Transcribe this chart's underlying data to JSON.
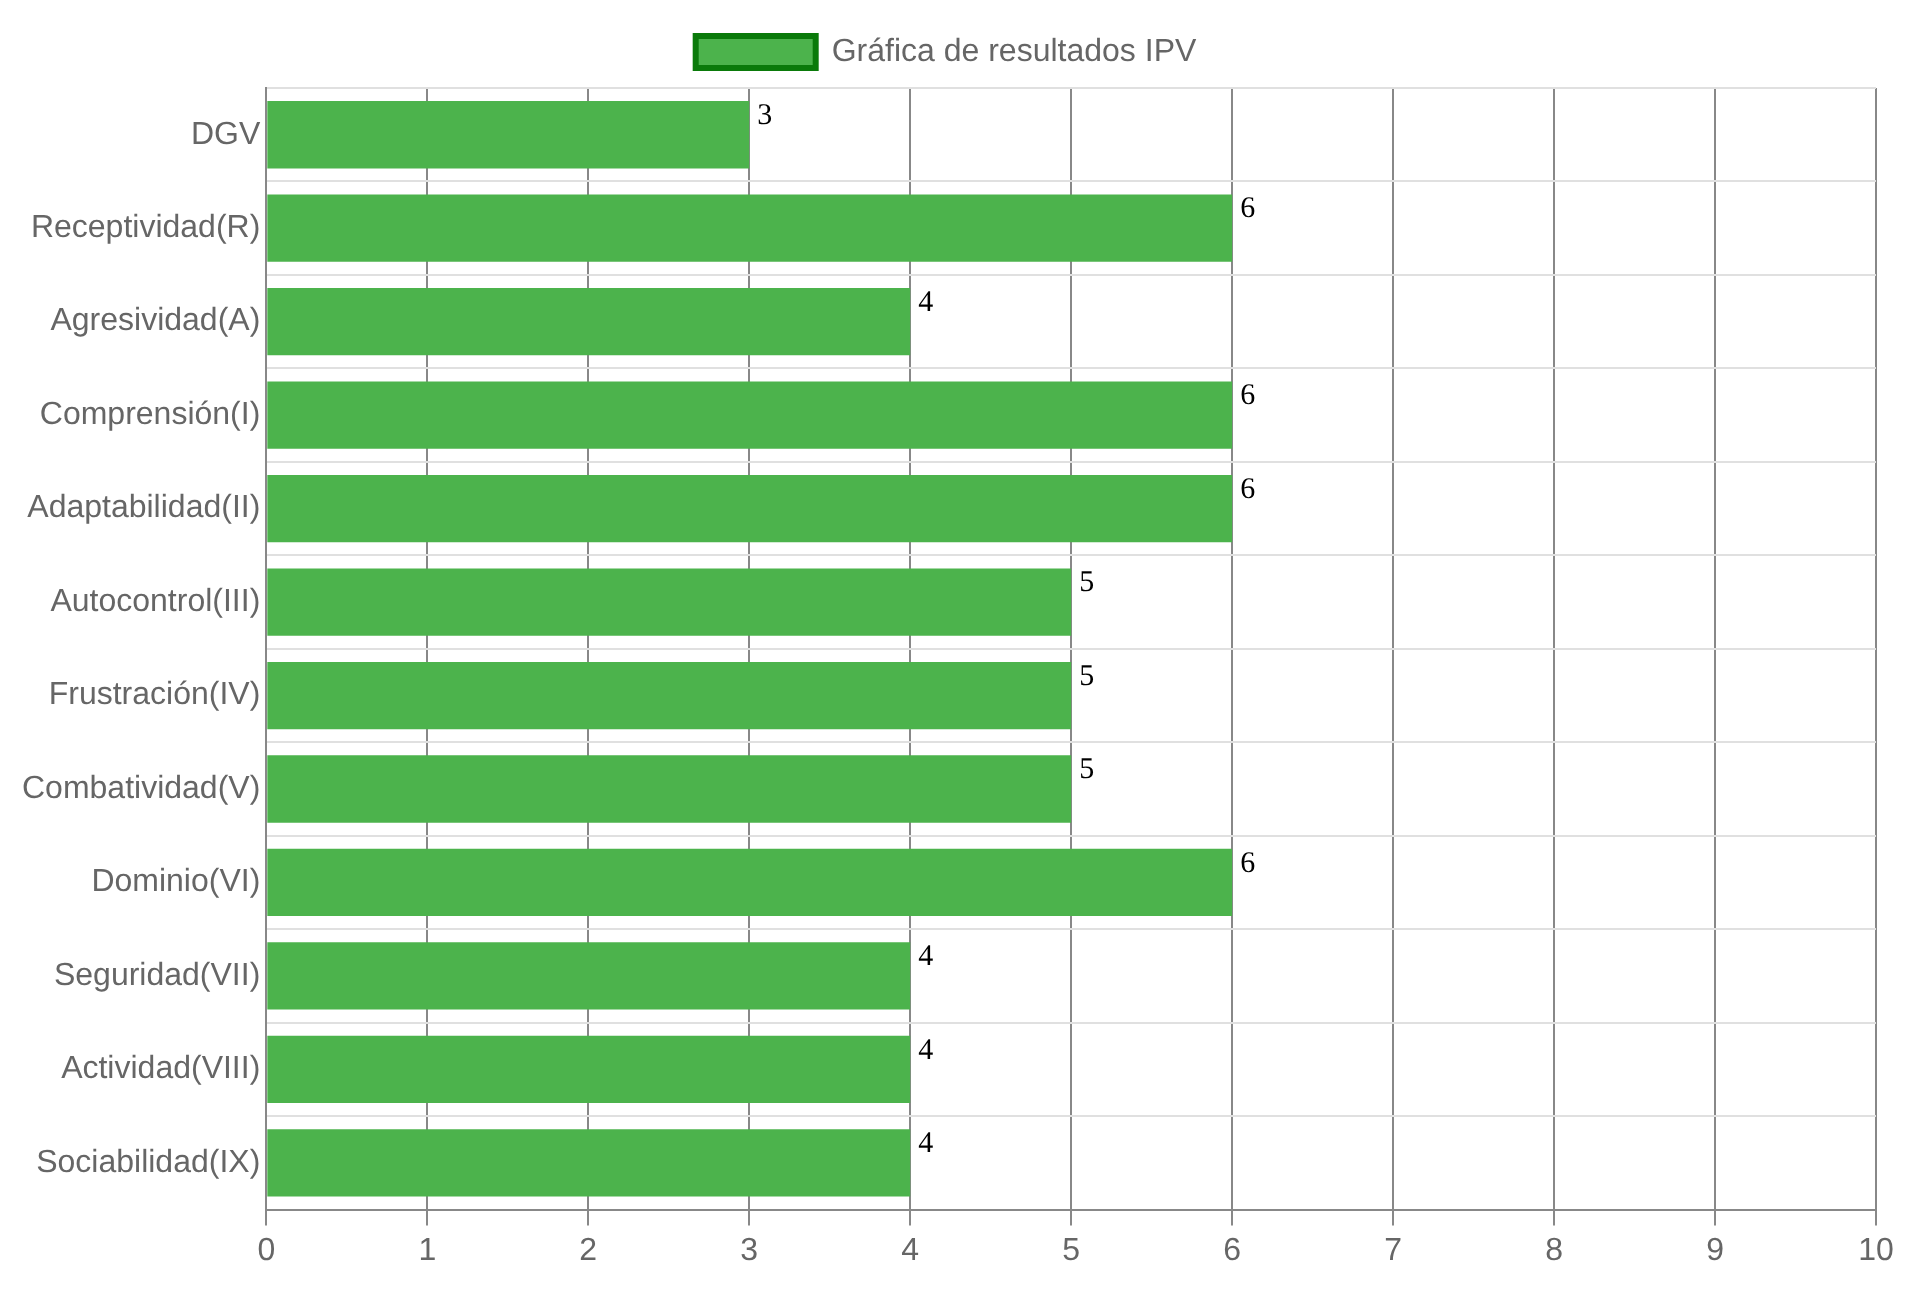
{
  "chart_data": {
    "type": "bar",
    "orientation": "horizontal",
    "categories": [
      "DGV",
      "Receptividad(R)",
      "Agresividad(A)",
      "Comprensión(I)",
      "Adaptabilidad(II)",
      "Autocontrol(III)",
      "Frustración(IV)",
      "Combatividad(V)",
      "Dominio(VI)",
      "Seguridad(VII)",
      "Actividad(VIII)",
      "Sociabilidad(IX)"
    ],
    "series": [
      {
        "name": "Gráfica de resultados IPV",
        "color": "#4cb34c",
        "values": [
          3,
          6,
          4,
          6,
          6,
          5,
          5,
          5,
          6,
          4,
          4,
          4
        ]
      }
    ],
    "xlim": [
      0,
      10
    ],
    "xticks": [
      0,
      1,
      2,
      3,
      4,
      5,
      6,
      7,
      8,
      9,
      10
    ],
    "grid": true,
    "legend": "top",
    "data_labels": true
  }
}
